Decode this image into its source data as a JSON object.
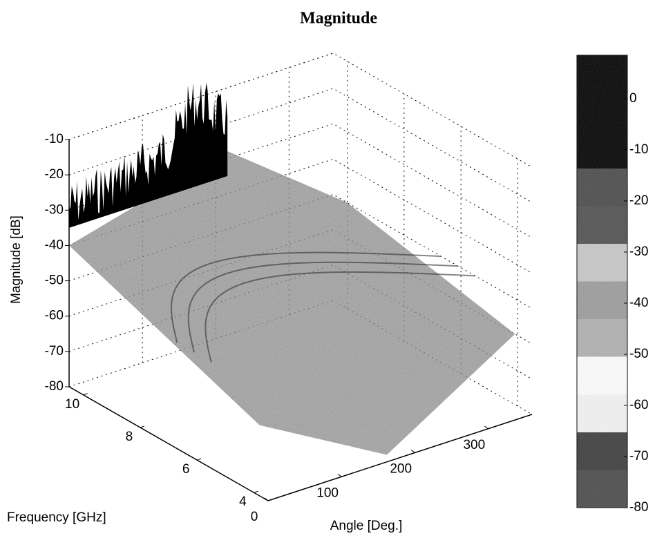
{
  "chart_data": {
    "type": "surface",
    "title": "Magnitude",
    "xlabel": "Angle [Deg.]",
    "ylabel": "Frequency [GHz]",
    "zlabel": "Magnitude [dB]",
    "xlim": [
      0,
      360
    ],
    "xticks": [
      0,
      100,
      200,
      300
    ],
    "ylim": [
      3.5,
      10.5
    ],
    "yticks": [
      4,
      6,
      8,
      10
    ],
    "zlim": [
      -80,
      -10
    ],
    "zticks": [
      -80,
      -70,
      -60,
      -50,
      -40,
      -30,
      -20,
      -10
    ],
    "grid": true,
    "colorbar": {
      "clim": [
        -80,
        8.5
      ],
      "ticks": [
        -80,
        -70,
        -60,
        -50,
        -40,
        -30,
        -20,
        -10,
        0
      ],
      "colormap": [
        "#4a4a4a",
        "#3c3c3c",
        "#f4f4f4",
        "#ffffff",
        "#b0b0b0",
        "#9c9c9c",
        "#c8c8c8",
        "#505050",
        "#4a4a4a",
        "#000000",
        "#000000",
        "#000000"
      ]
    }
  }
}
